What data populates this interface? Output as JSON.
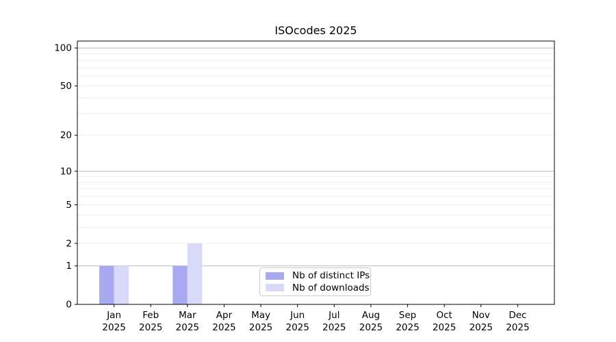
{
  "colors": {
    "background": "#ffffff",
    "axis": "#000000",
    "text": "#000000",
    "major_grid": "#b9b9b9",
    "minor_grid": "#ececec",
    "legend_border": "#cccccc",
    "bar_distinct_ips": "#a9a9f2",
    "bar_downloads": "#d9d9f9"
  },
  "chart_data": {
    "type": "bar",
    "title": "ISOcodes 2025",
    "year": "2025",
    "categories": [
      "Jan",
      "Feb",
      "Mar",
      "Apr",
      "May",
      "Jun",
      "Jul",
      "Aug",
      "Sep",
      "Oct",
      "Nov",
      "Dec"
    ],
    "series": [
      {
        "name": "Nb of distinct IPs",
        "color": "#a9a9f2",
        "values": [
          1,
          0,
          1,
          0,
          0,
          0,
          0,
          0,
          0,
          0,
          0,
          0
        ]
      },
      {
        "name": "Nb of downloads",
        "color": "#d9d9f9",
        "values": [
          1,
          0,
          2,
          0,
          0,
          0,
          0,
          0,
          0,
          0,
          0,
          0
        ]
      }
    ],
    "yticks": [
      0,
      1,
      2,
      5,
      10,
      20,
      50,
      100
    ],
    "major_gridlines": [
      1,
      10,
      100
    ],
    "minor_gridlines": [
      2,
      3,
      4,
      5,
      6,
      7,
      8,
      9,
      20,
      30,
      40,
      50,
      60,
      70,
      80,
      90
    ],
    "scale": "log10(1+y)",
    "ylim": [
      0,
      115
    ],
    "grid": "horizontal",
    "legend_position": "lower center",
    "xlabel": "",
    "ylabel": ""
  }
}
